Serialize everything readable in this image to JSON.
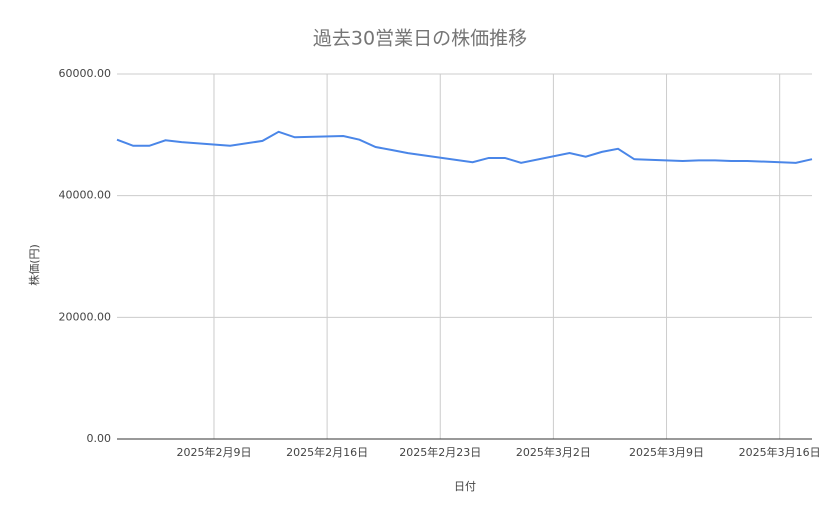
{
  "chart_data": {
    "type": "line",
    "title": "過去30営業日の株価推移",
    "x_label": "日付",
    "y_label": "株価(円)",
    "color": "#4a86e8",
    "grid": true,
    "x": [
      "2025-02-03",
      "2025-02-04",
      "2025-02-05",
      "2025-02-06",
      "2025-02-07",
      "2025-02-10",
      "2025-02-12",
      "2025-02-13",
      "2025-02-14",
      "2025-02-17",
      "2025-02-18",
      "2025-02-19",
      "2025-02-20",
      "2025-02-21",
      "2025-02-25",
      "2025-02-26",
      "2025-02-27",
      "2025-02-28",
      "2025-03-03",
      "2025-03-04",
      "2025-03-05",
      "2025-03-06",
      "2025-03-07",
      "2025-03-10",
      "2025-03-11",
      "2025-03-12",
      "2025-03-13",
      "2025-03-14",
      "2025-03-17",
      "2025-03-18"
    ],
    "values": [
      49200,
      48200,
      48200,
      49100,
      48800,
      48200,
      49000,
      50500,
      49600,
      49800,
      49200,
      48000,
      47500,
      47000,
      45500,
      46200,
      46200,
      45400,
      47000,
      46400,
      47200,
      47700,
      46000,
      45700,
      45800,
      45800,
      45700,
      45700,
      45400,
      46000
    ],
    "xlim": [
      "2025-02-03",
      "2025-03-18"
    ],
    "xticks": [
      {
        "value": "2025-02-09",
        "label": "2025年2月9日"
      },
      {
        "value": "2025-02-16",
        "label": "2025年2月16日"
      },
      {
        "value": "2025-02-23",
        "label": "2025年2月23日"
      },
      {
        "value": "2025-03-02",
        "label": "2025年3月2日"
      },
      {
        "value": "2025-03-09",
        "label": "2025年3月9日"
      },
      {
        "value": "2025-03-16",
        "label": "2025年3月16日"
      }
    ],
    "ylim": [
      0,
      60000
    ],
    "yticks": [
      {
        "value": 0,
        "label": "0.00"
      },
      {
        "value": 20000,
        "label": "20000.00"
      },
      {
        "value": 40000,
        "label": "40000.00"
      },
      {
        "value": 60000,
        "label": "60000.00"
      }
    ]
  }
}
